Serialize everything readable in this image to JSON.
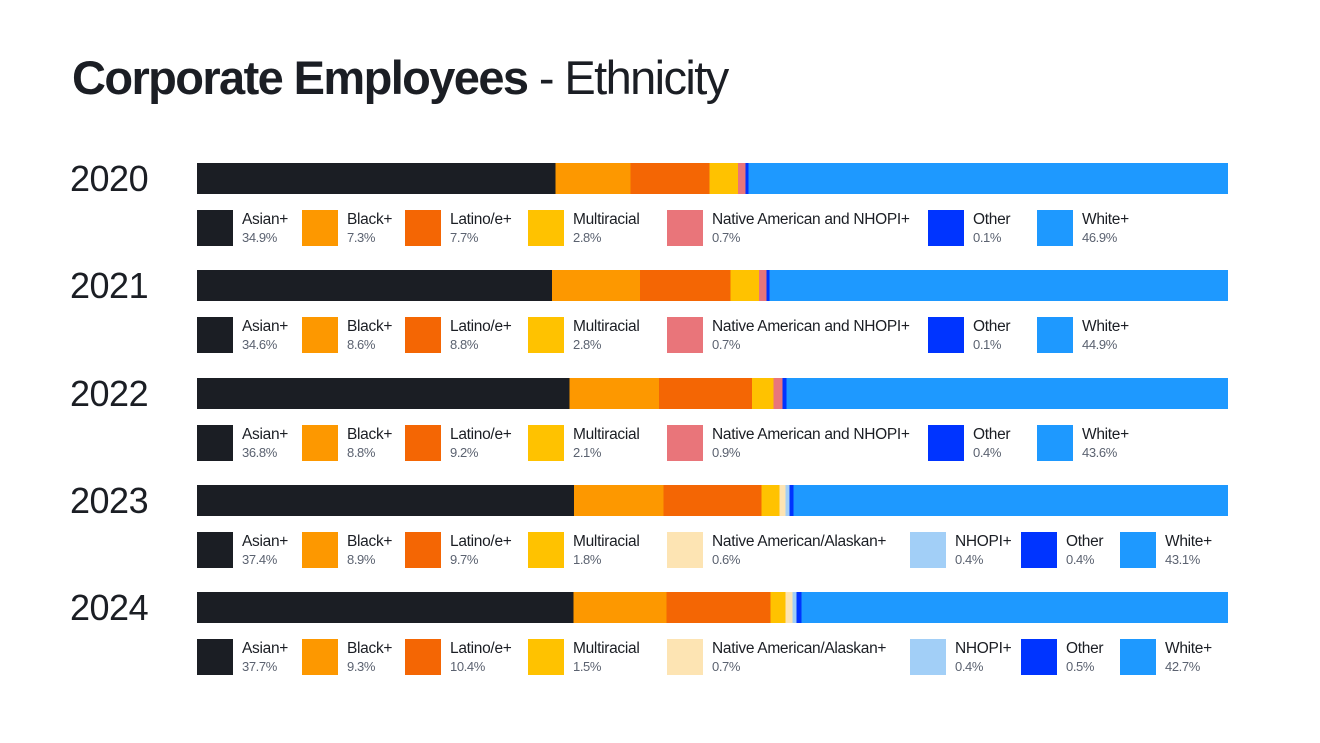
{
  "title": {
    "bold": "Corporate Employees",
    "light": " - Ethnicity"
  },
  "colors": {
    "Asian+": "#1b1e24",
    "Black+": "#fd9800",
    "Latino/e+": "#f46604",
    "Multiracial": "#ffc200",
    "Native American and NHOPI+": "#e9757a",
    "Native American/Alaskan+": "#fde4b3",
    "NHOPI+": "#a2cff7",
    "Other": "#0034ff",
    "White+": "#1e99ff"
  },
  "chart_data": {
    "type": "bar",
    "orientation": "horizontal",
    "stacked": true,
    "normalized": true,
    "title": "Corporate Employees - Ethnicity",
    "xlabel": "",
    "ylabel": "",
    "unit": "%",
    "grid": false,
    "legend_placement": "below-each-bar",
    "categories": [
      "2020",
      "2021",
      "2022",
      "2023",
      "2024"
    ],
    "rows": [
      {
        "year": "2020",
        "segments": [
          {
            "name": "Asian+",
            "value": 34.9,
            "label": "34.9%"
          },
          {
            "name": "Black+",
            "value": 7.3,
            "label": "7.3%"
          },
          {
            "name": "Latino/e+",
            "value": 7.7,
            "label": "7.7%"
          },
          {
            "name": "Multiracial",
            "value": 2.8,
            "label": "2.8%"
          },
          {
            "name": "Native American and NHOPI+",
            "value": 0.7,
            "label": "0.7%"
          },
          {
            "name": "Other",
            "value": 0.1,
            "label": "0.1%"
          },
          {
            "name": "White+",
            "value": 46.9,
            "label": "46.9%"
          }
        ]
      },
      {
        "year": "2021",
        "segments": [
          {
            "name": "Asian+",
            "value": 34.6,
            "label": "34.6%"
          },
          {
            "name": "Black+",
            "value": 8.6,
            "label": "8.6%"
          },
          {
            "name": "Latino/e+",
            "value": 8.8,
            "label": "8.8%"
          },
          {
            "name": "Multiracial",
            "value": 2.8,
            "label": "2.8%"
          },
          {
            "name": "Native American and NHOPI+",
            "value": 0.7,
            "label": "0.7%"
          },
          {
            "name": "Other",
            "value": 0.1,
            "label": "0.1%"
          },
          {
            "name": "White+",
            "value": 44.9,
            "label": "44.9%"
          }
        ]
      },
      {
        "year": "2022",
        "segments": [
          {
            "name": "Asian+",
            "value": 36.8,
            "label": "36.8%"
          },
          {
            "name": "Black+",
            "value": 8.8,
            "label": "8.8%"
          },
          {
            "name": "Latino/e+",
            "value": 9.2,
            "label": "9.2%"
          },
          {
            "name": "Multiracial",
            "value": 2.1,
            "label": "2.1%"
          },
          {
            "name": "Native American and NHOPI+",
            "value": 0.9,
            "label": "0.9%"
          },
          {
            "name": "Other",
            "value": 0.4,
            "label": "0.4%"
          },
          {
            "name": "White+",
            "value": 43.6,
            "label": "43.6%"
          }
        ]
      },
      {
        "year": "2023",
        "segments": [
          {
            "name": "Asian+",
            "value": 37.4,
            "label": "37.4%"
          },
          {
            "name": "Black+",
            "value": 8.9,
            "label": "8.9%"
          },
          {
            "name": "Latino/e+",
            "value": 9.7,
            "label": "9.7%"
          },
          {
            "name": "Multiracial",
            "value": 1.8,
            "label": "1.8%"
          },
          {
            "name": "Native American/Alaskan+",
            "value": 0.6,
            "label": "0.6%"
          },
          {
            "name": "NHOPI+",
            "value": 0.4,
            "label": "0.4%"
          },
          {
            "name": "Other",
            "value": 0.4,
            "label": "0.4%"
          },
          {
            "name": "White+",
            "value": 43.1,
            "label": "43.1%"
          }
        ]
      },
      {
        "year": "2024",
        "segments": [
          {
            "name": "Asian+",
            "value": 37.7,
            "label": "37.7%"
          },
          {
            "name": "Black+",
            "value": 9.3,
            "label": "9.3%"
          },
          {
            "name": "Latino/e+",
            "value": 10.4,
            "label": "10.4%"
          },
          {
            "name": "Multiracial",
            "value": 1.5,
            "label": "1.5%"
          },
          {
            "name": "Native American/Alaskan+",
            "value": 0.7,
            "label": "0.7%"
          },
          {
            "name": "NHOPI+",
            "value": 0.4,
            "label": "0.4%"
          },
          {
            "name": "Other",
            "value": 0.5,
            "label": "0.5%"
          },
          {
            "name": "White+",
            "value": 42.7,
            "label": "42.7%"
          }
        ]
      }
    ]
  }
}
